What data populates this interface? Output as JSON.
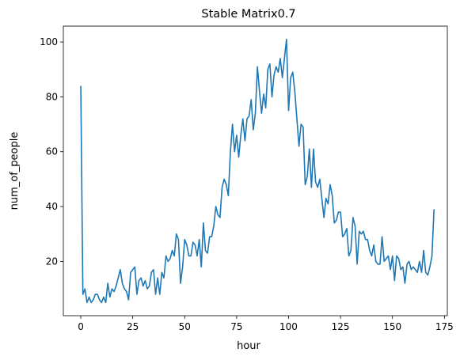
{
  "chart_data": {
    "type": "line",
    "title": "Stable Matrix0.7",
    "xlabel": "hour",
    "ylabel": "num_of_people",
    "xlim": [
      -8.4,
      176.4
    ],
    "ylim": [
      0.2,
      105.8
    ],
    "xticks": [
      0,
      25,
      50,
      75,
      100,
      125,
      150,
      175
    ],
    "yticks": [
      20,
      40,
      60,
      80,
      100
    ],
    "grid": false,
    "line_color": "#1f77b4",
    "series": [
      {
        "values": [
          84,
          8,
          10,
          5,
          7,
          5,
          6,
          8,
          8,
          6,
          5,
          7,
          5,
          12,
          7,
          10,
          9,
          11,
          14,
          17,
          12,
          10,
          9,
          6,
          16,
          17,
          18,
          8,
          13,
          14,
          11,
          13,
          10,
          11,
          16,
          17,
          8,
          14,
          8,
          16,
          14,
          22,
          20,
          21,
          24,
          22,
          30,
          28,
          12,
          18,
          28,
          26,
          22,
          22,
          27,
          26,
          22,
          28,
          18,
          34,
          24,
          23,
          29,
          29,
          33,
          40,
          37,
          36,
          47,
          50,
          48,
          44,
          60,
          70,
          60,
          66,
          58,
          66,
          72,
          64,
          72,
          73,
          79,
          68,
          74,
          91,
          82,
          74,
          81,
          76,
          90,
          92,
          80,
          88,
          91,
          89,
          94,
          87,
          94,
          101,
          75,
          87,
          89,
          82,
          72,
          62,
          70,
          69,
          48,
          51,
          61,
          47,
          61,
          49,
          47,
          50,
          43,
          36,
          43,
          41,
          48,
          44,
          34,
          35,
          38,
          38,
          29,
          30,
          32,
          22,
          24,
          36,
          33,
          19,
          31,
          30,
          31,
          28,
          28,
          24,
          22,
          26,
          20,
          19,
          19,
          29,
          20,
          21,
          22,
          17,
          22,
          13,
          22,
          21,
          17,
          18,
          12,
          19,
          20,
          17,
          18,
          17,
          16,
          20,
          16,
          24,
          16,
          15,
          18,
          22,
          39
        ]
      }
    ]
  }
}
